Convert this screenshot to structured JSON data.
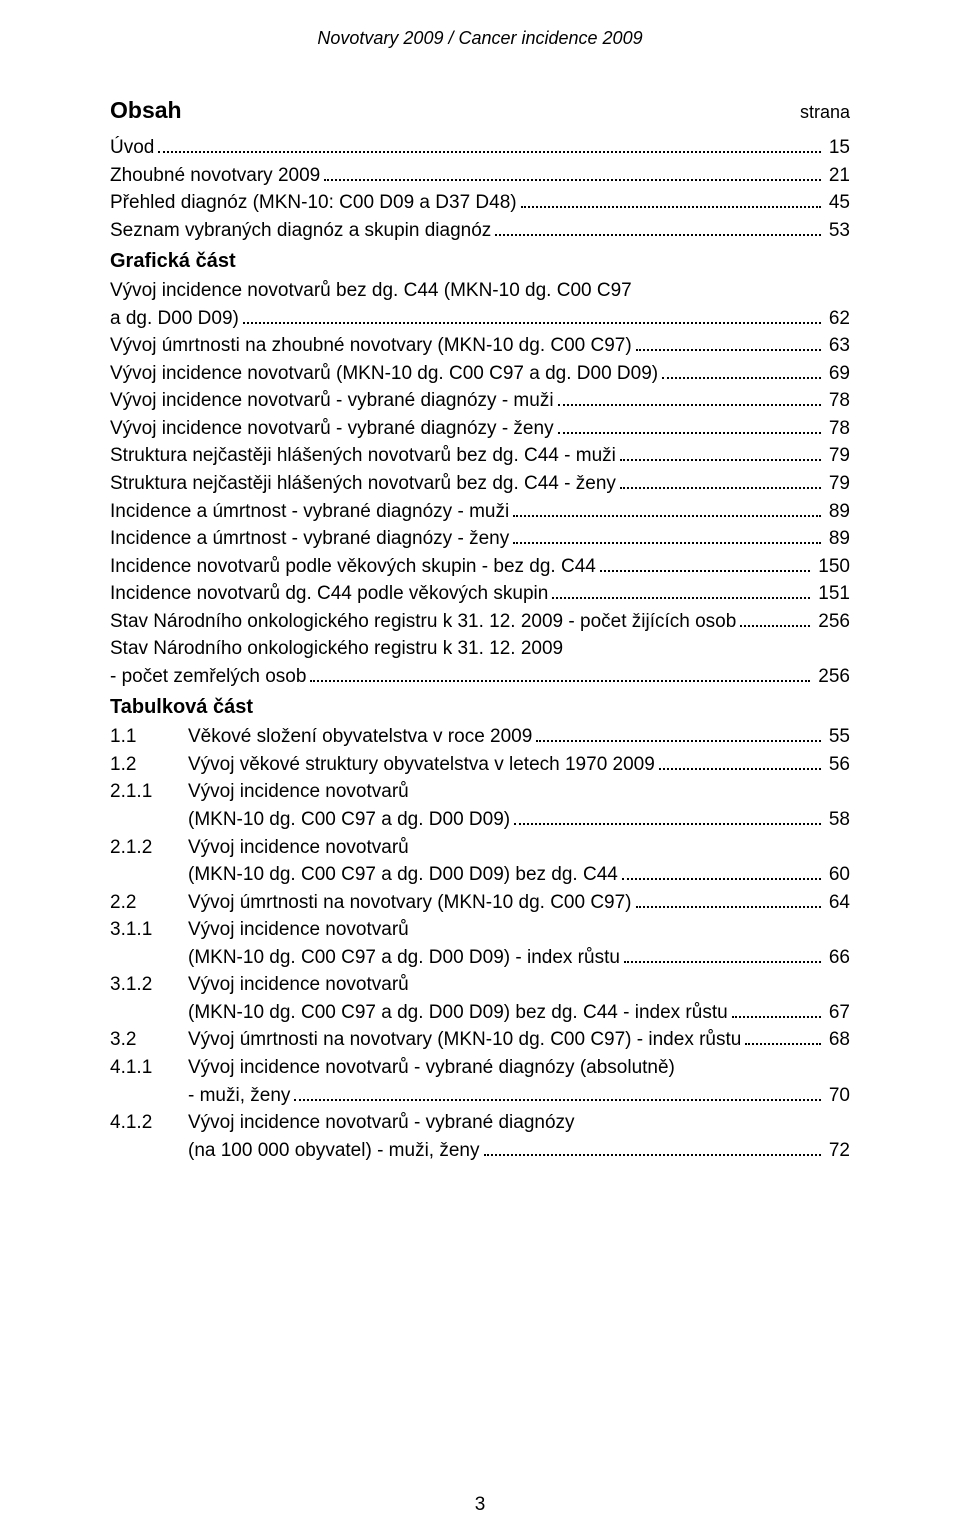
{
  "header": {
    "title": "Novotvary 2009  /  Cancer incidence 2009"
  },
  "obsah": {
    "label": "Obsah",
    "strana": "strana"
  },
  "toc_top": [
    {
      "label": "Úvod",
      "page": "15"
    },
    {
      "label": "Zhoubné novotvary 2009",
      "page": "21"
    },
    {
      "label": "Přehled diagnóz (MKN-10: C00 D09 a D37 D48)",
      "page": "45"
    },
    {
      "label": "Seznam vybraných diagnóz a skupin diagnóz",
      "page": "53"
    }
  ],
  "graficka_label": "Grafická část",
  "toc_graficka": [
    {
      "pre": "Vývoj incidence novotvarů bez dg. C44 (MKN-10 dg. C00 C97",
      "last": "a dg. D00 D09)",
      "page": "62"
    },
    {
      "last": "Vývoj úmrtnosti na zhoubné novotvary (MKN-10 dg. C00 C97)",
      "page": "63"
    },
    {
      "last": "Vývoj incidence novotvarů (MKN-10 dg. C00 C97 a dg. D00 D09)",
      "page": "69"
    },
    {
      "last": "Vývoj incidence novotvarů - vybrané diagnózy - muži",
      "page": "78"
    },
    {
      "last": "Vývoj incidence novotvarů - vybrané diagnózy - ženy",
      "page": "78"
    },
    {
      "last": "Struktura nejčastěji hlášených novotvarů bez dg. C44 - muži",
      "page": "79"
    },
    {
      "last": "Struktura nejčastěji hlášených novotvarů bez dg. C44 - ženy",
      "page": "79"
    },
    {
      "last": "Incidence a úmrtnost - vybrané diagnózy - muži",
      "page": "89"
    },
    {
      "last": "Incidence a úmrtnost - vybrané diagnózy - ženy",
      "page": "89"
    },
    {
      "last": "Incidence novotvarů podle věkových skupin - bez dg. C44",
      "page": "150"
    },
    {
      "last": "Incidence novotvarů dg. C44 podle věkových skupin",
      "page": "151"
    },
    {
      "last": "Stav Národního onkologického registru k 31. 12. 2009 - počet žijících osob",
      "page": "256"
    },
    {
      "pre": "Stav Národního onkologického registru k 31. 12. 2009",
      "last": "- počet zemřelých osob",
      "page": "256"
    }
  ],
  "tabulkova_label": "Tabulková část",
  "toc_tab": [
    {
      "num": "1.1",
      "last": "Věkové složení obyvatelstva v roce 2009",
      "page": "55"
    },
    {
      "num": "1.2",
      "last": "Vývoj věkové struktury obyvatelstva v letech 1970 2009",
      "page": "56"
    },
    {
      "num": "2.1.1",
      "pre": "Vývoj incidence novotvarů",
      "last": "(MKN-10 dg. C00 C97 a dg. D00 D09)",
      "page": "58"
    },
    {
      "num": "2.1.2",
      "pre": "Vývoj incidence novotvarů",
      "last": "(MKN-10 dg. C00 C97 a dg. D00 D09) bez dg. C44",
      "page": "60"
    },
    {
      "num": "2.2",
      "last": "Vývoj úmrtnosti na novotvary (MKN-10 dg. C00 C97)",
      "page": "64"
    },
    {
      "num": "3.1.1",
      "pre": "Vývoj incidence novotvarů",
      "last": "(MKN-10 dg. C00 C97 a dg. D00 D09) - index růstu",
      "page": "66"
    },
    {
      "num": "3.1.2",
      "pre": "Vývoj incidence novotvarů",
      "last": "(MKN-10 dg. C00 C97 a dg. D00 D09) bez dg. C44 - index růstu",
      "page": "67"
    },
    {
      "num": "3.2",
      "last": "Vývoj úmrtnosti na novotvary (MKN-10 dg. C00 C97) - index růstu",
      "page": "68"
    },
    {
      "num": "4.1.1",
      "pre": "Vývoj incidence novotvarů - vybrané diagnózy (absolutně)",
      "last": "- muži, ženy",
      "page": "70"
    },
    {
      "num": "4.1.2",
      "pre": "Vývoj incidence novotvarů - vybrané diagnózy",
      "last": "(na 100 000 obyvatel) - muži, ženy",
      "page": "72"
    }
  ],
  "footer": {
    "page_number": "3"
  }
}
